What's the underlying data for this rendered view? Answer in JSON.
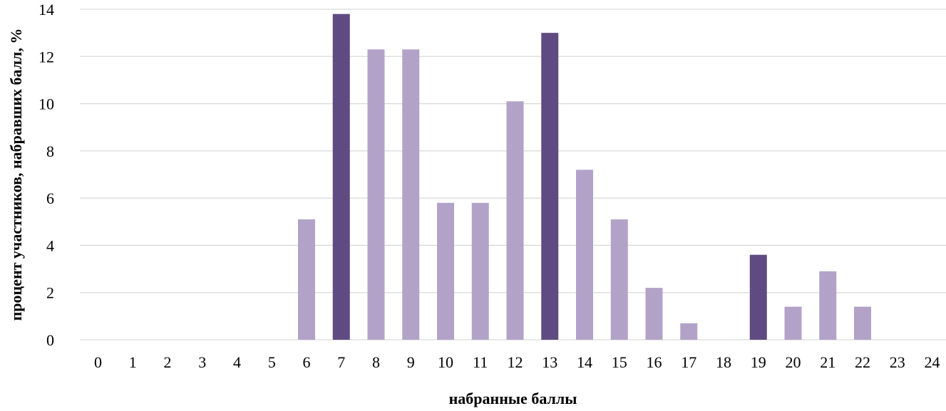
{
  "chart_data": {
    "type": "bar",
    "xlabel": "набранные баллы",
    "ylabel": "процент участников, набравших балл, %",
    "ylim": [
      0,
      14
    ],
    "yticks": [
      0,
      2,
      4,
      6,
      8,
      10,
      12,
      14
    ],
    "grid": true,
    "categories": [
      "0",
      "1",
      "2",
      "3",
      "4",
      "5",
      "6",
      "7",
      "8",
      "9",
      "10",
      "11",
      "12",
      "13",
      "14",
      "15",
      "16",
      "17",
      "18",
      "19",
      "20",
      "21",
      "22",
      "23",
      "24"
    ],
    "values": [
      0,
      0,
      0,
      0,
      0,
      0,
      5.1,
      13.8,
      12.3,
      12.3,
      5.8,
      5.8,
      10.1,
      13.0,
      7.2,
      5.1,
      2.2,
      0.7,
      0,
      3.6,
      1.4,
      2.9,
      1.4,
      0,
      0
    ],
    "highlighted_categories": [
      "7",
      "13",
      "19"
    ],
    "colors": {
      "bar": "#b3a2c8",
      "highlight": "#5f4b82",
      "grid": "#d9d9d9"
    }
  }
}
